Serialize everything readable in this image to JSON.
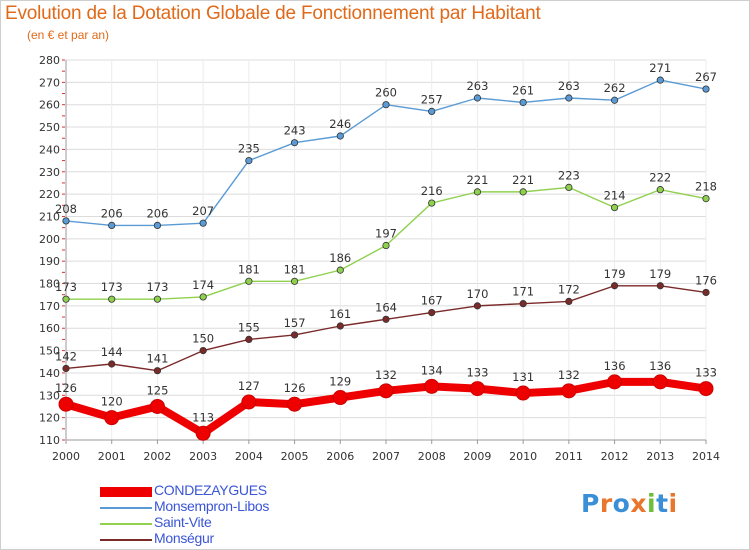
{
  "header": {
    "title": "Evolution de la Dotation Globale de Fonctionnement par Habitant",
    "subtitle": "(en € et par an)"
  },
  "logo": {
    "text": "Proxiti",
    "colors": [
      "#3b8fd6",
      "#e8762d",
      "#3b8fd6",
      "#e8762d",
      "#6bbf3a",
      "#3b8fd6",
      "#e8762d"
    ]
  },
  "chart_data": {
    "type": "line",
    "title": "Evolution de la Dotation Globale de Fonctionnement par Habitant",
    "subtitle": "(en € et par an)",
    "x": [
      2000,
      2001,
      2002,
      2003,
      2004,
      2005,
      2006,
      2007,
      2008,
      2009,
      2010,
      2011,
      2012,
      2013,
      2014
    ],
    "ylim": [
      110,
      280
    ],
    "yticks": [
      110,
      120,
      130,
      140,
      150,
      160,
      170,
      180,
      190,
      200,
      210,
      220,
      230,
      240,
      250,
      260,
      270,
      280
    ],
    "grid": "horizontal",
    "legend_position": "bottom-left",
    "series": [
      {
        "name": "CONDEZAYGUES",
        "color": "#ee0000",
        "emphasis": true,
        "values": [
          126,
          120,
          125,
          113,
          127,
          126,
          129,
          132,
          134,
          133,
          131,
          132,
          136,
          136,
          133
        ]
      },
      {
        "name": "Monsempron-Libos",
        "color": "#5b9bd5",
        "emphasis": false,
        "values": [
          208,
          206,
          206,
          207,
          235,
          243,
          246,
          260,
          257,
          263,
          261,
          263,
          262,
          271,
          267
        ]
      },
      {
        "name": "Saint-Vite",
        "color": "#8fd14f",
        "emphasis": false,
        "values": [
          173,
          173,
          173,
          174,
          181,
          181,
          186,
          197,
          216,
          221,
          221,
          223,
          214,
          222,
          218
        ]
      },
      {
        "name": "Monségur",
        "color": "#7b2a2a",
        "emphasis": false,
        "values": [
          142,
          144,
          141,
          150,
          155,
          157,
          161,
          164,
          167,
          170,
          171,
          172,
          179,
          179,
          176
        ]
      }
    ]
  }
}
